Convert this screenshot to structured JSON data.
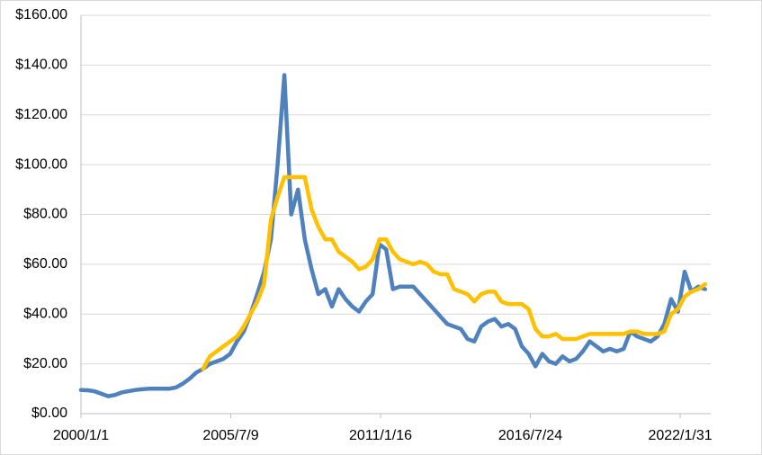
{
  "chart_data": {
    "type": "line",
    "x": [
      "2000/1/1",
      "2000/4/1",
      "2000/7/1",
      "2000/10/1",
      "2001/1/1",
      "2001/4/1",
      "2001/7/1",
      "2001/10/1",
      "2002/1/1",
      "2002/4/1",
      "2002/7/1",
      "2002/10/1",
      "2003/1/1",
      "2003/4/1",
      "2003/7/1",
      "2003/10/1",
      "2004/1/1",
      "2004/4/1",
      "2004/7/1",
      "2004/10/1",
      "2005/1/1",
      "2005/4/1",
      "2005/7/1",
      "2005/10/1",
      "2006/1/1",
      "2006/4/1",
      "2006/7/1",
      "2006/10/1",
      "2007/1/1",
      "2007/4/1",
      "2007/7/1",
      "2007/10/1",
      "2008/1/1",
      "2008/4/1",
      "2008/7/1",
      "2008/10/1",
      "2009/1/1",
      "2009/4/1",
      "2009/7/1",
      "2009/10/1",
      "2010/1/1",
      "2010/4/1",
      "2010/7/1",
      "2010/10/1",
      "2011/1/1",
      "2011/4/1",
      "2011/7/1",
      "2011/10/1",
      "2012/1/1",
      "2012/4/1",
      "2012/7/1",
      "2012/10/1",
      "2013/1/1",
      "2013/4/1",
      "2013/7/1",
      "2013/10/1",
      "2014/1/1",
      "2014/4/1",
      "2014/7/1",
      "2014/10/1",
      "2015/1/1",
      "2015/4/1",
      "2015/7/1",
      "2015/10/1",
      "2016/1/1",
      "2016/4/1",
      "2016/7/1",
      "2016/10/1",
      "2017/1/1",
      "2017/4/1",
      "2017/7/1",
      "2017/10/1",
      "2018/1/1",
      "2018/4/1",
      "2018/7/1",
      "2018/10/1",
      "2019/1/1",
      "2019/4/1",
      "2019/7/1",
      "2019/10/1",
      "2020/1/1",
      "2020/4/1",
      "2020/7/1",
      "2020/10/1",
      "2021/1/1",
      "2021/4/1",
      "2021/7/1",
      "2021/10/1",
      "2022/1/1",
      "2022/4/1",
      "2022/7/1",
      "2022/10/1",
      "2023/1/1"
    ],
    "series": [
      {
        "color": "#4f81bd",
        "values": [
          9.5,
          9.4,
          9,
          8,
          7,
          7.5,
          8.5,
          9,
          9.5,
          9.8,
          10,
          10,
          10,
          10,
          10.5,
          12,
          14,
          16.5,
          18,
          20,
          21,
          22,
          24,
          29,
          33,
          40,
          48,
          57,
          70,
          100,
          136,
          80,
          90,
          70,
          58,
          48,
          50,
          43,
          50,
          46,
          43,
          41,
          45,
          48,
          68,
          66,
          50,
          51,
          51,
          51,
          48,
          45,
          42,
          39,
          36,
          35,
          34,
          30,
          29,
          35,
          37,
          38,
          35,
          36,
          34,
          27,
          24,
          19,
          24,
          21,
          20,
          23,
          21,
          22,
          25,
          29,
          27,
          25,
          26,
          25,
          26,
          33,
          31,
          30,
          29,
          31,
          36,
          46,
          41,
          57,
          49,
          51,
          50
        ]
      },
      {
        "color": "#ffc000",
        "values": [
          null,
          null,
          null,
          null,
          null,
          null,
          null,
          null,
          null,
          null,
          null,
          null,
          null,
          null,
          null,
          null,
          null,
          null,
          18,
          23,
          25,
          27,
          29,
          31,
          35,
          40,
          45,
          52,
          78,
          87,
          95,
          95,
          95,
          95,
          82,
          75,
          70,
          70,
          65,
          63,
          61,
          58,
          59,
          62,
          70,
          70,
          65,
          62,
          61,
          60,
          61,
          60,
          57,
          56,
          56,
          50,
          49,
          48,
          45,
          48,
          49,
          49,
          45,
          44,
          44,
          44,
          42,
          34,
          31,
          31,
          32,
          30,
          30,
          30,
          31,
          32,
          32,
          32,
          32,
          32,
          32,
          33,
          33,
          32,
          32,
          32,
          33,
          40,
          42,
          47,
          49,
          50,
          52
        ]
      }
    ],
    "xlim": [
      "2000/1/1",
      "2023/3/18"
    ],
    "xticks": [
      "2000/1/1",
      "2005/7/9",
      "2011/1/16",
      "2016/7/24",
      "2022/1/31"
    ],
    "ylim": [
      0,
      160
    ],
    "yticks": [
      {
        "value": 0,
        "label": "$0.00"
      },
      {
        "value": 20,
        "label": "$20.00"
      },
      {
        "value": 40,
        "label": "$40.00"
      },
      {
        "value": 60,
        "label": "$60.00"
      },
      {
        "value": 80,
        "label": "$80.00"
      },
      {
        "value": 100,
        "label": "$100.00"
      },
      {
        "value": 120,
        "label": "$120.00"
      },
      {
        "value": 140,
        "label": "$140.00"
      },
      {
        "value": 160,
        "label": "$160.00"
      }
    ],
    "grid": true
  }
}
